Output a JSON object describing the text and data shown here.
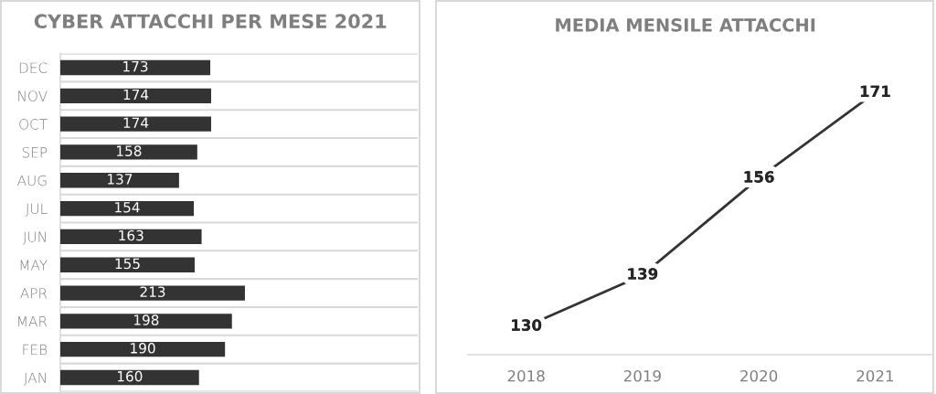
{
  "chart_data": [
    {
      "type": "bar",
      "orientation": "horizontal",
      "title": "CYBER ATTACCHI PER MESE 2021",
      "categories": [
        "DEC",
        "NOV",
        "OCT",
        "SEP",
        "AUG",
        "JUL",
        "JUN",
        "MAY",
        "APR",
        "MAR",
        "FEB",
        "JAN"
      ],
      "values": [
        173,
        174,
        174,
        158,
        137,
        154,
        163,
        155,
        213,
        198,
        190,
        160
      ],
      "color": "#333333",
      "data_labels": true,
      "grid": "y",
      "tick_labels": "y"
    },
    {
      "type": "line",
      "title": "MEDIA MENSILE ATTACCHI",
      "categories": [
        "2018",
        "2019",
        "2020",
        "2021"
      ],
      "values": [
        130,
        139,
        156,
        171
      ],
      "color": "#333333",
      "data_labels": true,
      "tick_labels": "x"
    }
  ]
}
